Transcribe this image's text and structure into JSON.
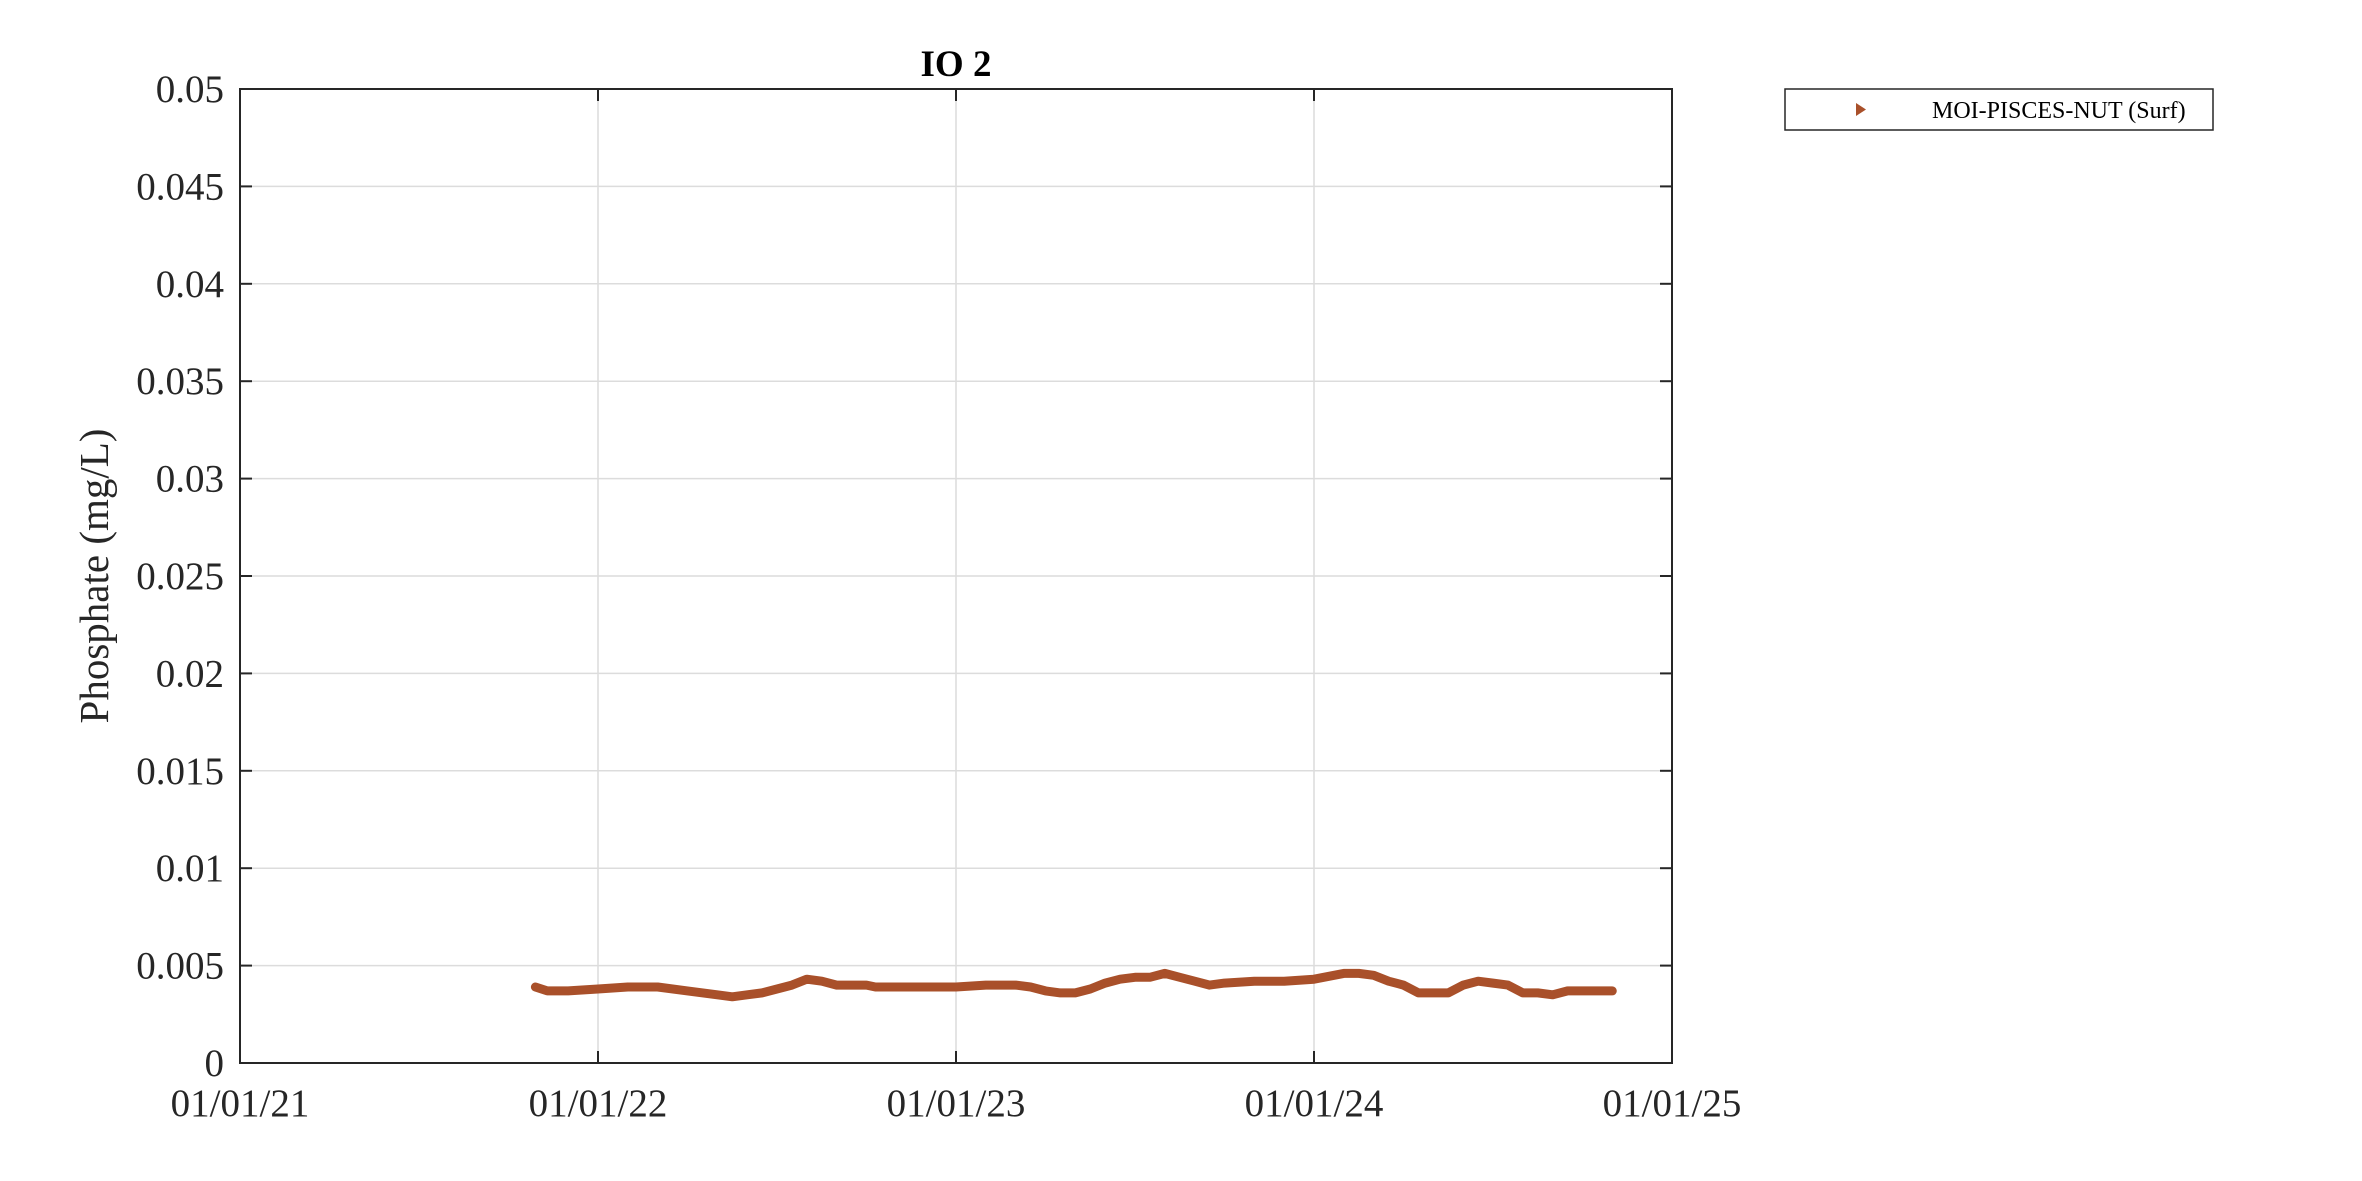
{
  "chart_data": {
    "type": "line",
    "title": "IO 2",
    "xlabel": "",
    "ylabel": "Phosphate (mg/L)",
    "grid": true,
    "legend_position": "outside-top-right",
    "xlim": [
      0,
      48
    ],
    "ylim": [
      0,
      0.05
    ],
    "x_unit": "months since 01/01/21",
    "x_ticks": [
      {
        "value": 0,
        "label": "01/01/21"
      },
      {
        "value": 12,
        "label": "01/01/22"
      },
      {
        "value": 24,
        "label": "01/01/23"
      },
      {
        "value": 36,
        "label": "01/01/24"
      },
      {
        "value": 48,
        "label": "01/01/25"
      }
    ],
    "y_ticks": [
      {
        "value": 0,
        "label": "0"
      },
      {
        "value": 0.005,
        "label": "0.005"
      },
      {
        "value": 0.01,
        "label": "0.01"
      },
      {
        "value": 0.015,
        "label": "0.015"
      },
      {
        "value": 0.02,
        "label": "0.02"
      },
      {
        "value": 0.025,
        "label": "0.025"
      },
      {
        "value": 0.03,
        "label": "0.03"
      },
      {
        "value": 0.035,
        "label": "0.035"
      },
      {
        "value": 0.04,
        "label": "0.04"
      },
      {
        "value": 0.045,
        "label": "0.045"
      },
      {
        "value": 0.05,
        "label": "0.05"
      }
    ],
    "series": [
      {
        "name": "MOI-PISCES-NUT (Surf)",
        "color": "#a9502a",
        "marker": "triangle-right",
        "x": [
          9.9,
          10.3,
          11.0,
          12.0,
          13.0,
          14.0,
          15.0,
          16.0,
          16.5,
          17.0,
          17.5,
          18.0,
          18.5,
          19.0,
          19.5,
          20.0,
          20.5,
          21.0,
          21.3,
          21.6,
          22.0,
          22.5,
          23.0,
          24.0,
          25.0,
          26.0,
          26.5,
          27.0,
          27.5,
          28.0,
          28.5,
          29.0,
          29.5,
          30.0,
          30.5,
          31.0,
          31.5,
          32.0,
          32.5,
          33.0,
          34.0,
          35.0,
          36.0,
          37.0,
          37.5,
          38.0,
          38.5,
          39.0,
          39.5,
          40.0,
          40.5,
          41.0,
          41.5,
          42.0,
          42.5,
          43.0,
          43.5,
          44.0,
          44.5,
          45.0,
          45.5,
          46.0
        ],
        "y": [
          0.0039,
          0.0037,
          0.0037,
          0.0038,
          0.0039,
          0.0039,
          0.0037,
          0.0035,
          0.0034,
          0.0035,
          0.0036,
          0.0038,
          0.004,
          0.0043,
          0.0042,
          0.004,
          0.004,
          0.004,
          0.0039,
          0.0039,
          0.0039,
          0.0039,
          0.0039,
          0.0039,
          0.004,
          0.004,
          0.0039,
          0.0037,
          0.0036,
          0.0036,
          0.0038,
          0.0041,
          0.0043,
          0.0044,
          0.0044,
          0.0046,
          0.0044,
          0.0042,
          0.004,
          0.0041,
          0.0042,
          0.0042,
          0.0043,
          0.0046,
          0.0046,
          0.0045,
          0.0042,
          0.004,
          0.0036,
          0.0036,
          0.0036,
          0.004,
          0.0042,
          0.0041,
          0.004,
          0.0036,
          0.0036,
          0.0035,
          0.0037,
          0.0037,
          0.0037,
          0.0037
        ]
      }
    ]
  }
}
